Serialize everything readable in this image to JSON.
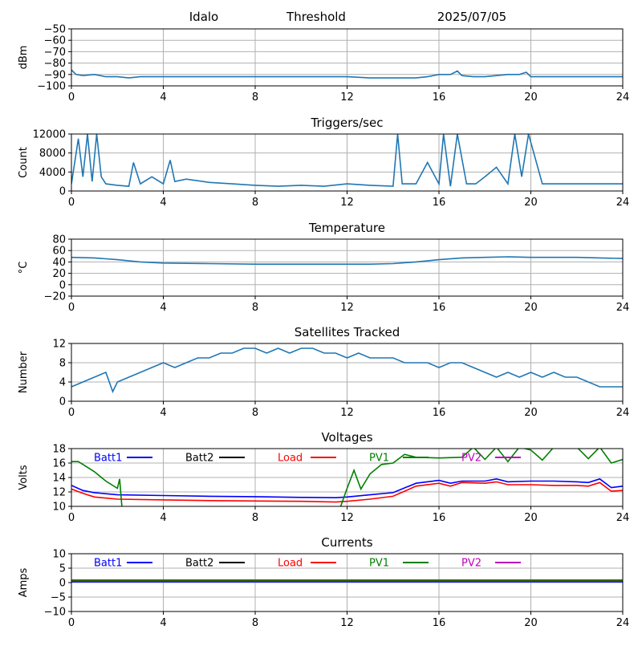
{
  "header": {
    "station": "Idalo",
    "mode": "Threshold",
    "date": "2025/07/05"
  },
  "colors": {
    "line": "#1f77b4",
    "grid": "#b0b0b0",
    "Batt1": "#0000ff",
    "Batt2": "#000000",
    "Load": "#ff0000",
    "PV1": "#008000",
    "PV2": "#bf00bf"
  },
  "chart_data": [
    {
      "type": "line",
      "title": "",
      "ylabel": "dBm",
      "xlim": [
        0,
        24
      ],
      "xticks": [
        0,
        4,
        8,
        12,
        16,
        20,
        24
      ],
      "ylim": [
        -100,
        -50
      ],
      "yticks": [
        -100,
        -90,
        -80,
        -70,
        -60,
        -50
      ],
      "grid": true,
      "series": [
        {
          "x": [
            0,
            0.2,
            0.5,
            1,
            1.5,
            2,
            2.5,
            3,
            4,
            6,
            8,
            10,
            12,
            13,
            14,
            15,
            15.5,
            16,
            16.5,
            16.8,
            17,
            17.5,
            18,
            19,
            19.5,
            19.8,
            20,
            21,
            22,
            23,
            24
          ],
          "y": [
            -86,
            -90,
            -91,
            -90,
            -92,
            -92,
            -93,
            -92,
            -92,
            -92,
            -92,
            -92,
            -92,
            -93,
            -93,
            -93,
            -92,
            -90,
            -90,
            -87,
            -91,
            -92,
            -92,
            -90,
            -90,
            -88,
            -92,
            -92,
            -92,
            -92,
            -92
          ]
        }
      ]
    },
    {
      "type": "line",
      "title": "Triggers/sec",
      "ylabel": "Count",
      "xlim": [
        0,
        24
      ],
      "xticks": [
        0,
        4,
        8,
        12,
        16,
        20,
        24
      ],
      "ylim": [
        0,
        12000
      ],
      "yticks": [
        0,
        4000,
        8000,
        12000
      ],
      "grid": true,
      "series": [
        {
          "x": [
            0,
            0.3,
            0.5,
            0.7,
            0.9,
            1.1,
            1.3,
            1.5,
            2,
            2.5,
            2.7,
            3,
            3.5,
            4,
            4.3,
            4.5,
            5,
            6,
            7,
            8,
            9,
            10,
            11,
            12,
            13,
            14,
            14.2,
            14.4,
            15,
            15.5,
            16,
            16.2,
            16.5,
            16.8,
            17.2,
            17.6,
            18,
            18.5,
            19,
            19.3,
            19.6,
            19.9,
            20.5,
            21,
            22,
            23,
            24
          ],
          "y": [
            1500,
            11000,
            3000,
            12000,
            2000,
            12000,
            3000,
            1500,
            1200,
            1000,
            6000,
            1500,
            3000,
            1500,
            6500,
            2000,
            2500,
            1800,
            1500,
            1200,
            1000,
            1200,
            1000,
            1500,
            1200,
            1000,
            12000,
            1500,
            1500,
            6000,
            1500,
            12000,
            1000,
            12000,
            1500,
            1500,
            3000,
            5000,
            1500,
            12000,
            3000,
            12000,
            1500,
            1500,
            1500,
            1500,
            1500
          ]
        }
      ]
    },
    {
      "type": "line",
      "title": "Temperature",
      "ylabel": "°C",
      "xlim": [
        0,
        24
      ],
      "xticks": [
        0,
        4,
        8,
        12,
        16,
        20,
        24
      ],
      "ylim": [
        -20,
        80
      ],
      "yticks": [
        -20,
        0,
        20,
        40,
        60,
        80
      ],
      "grid": true,
      "series": [
        {
          "x": [
            0,
            1,
            2,
            3,
            4,
            6,
            8,
            10,
            12,
            13,
            14,
            15,
            16,
            17,
            18,
            19,
            20,
            21,
            22,
            23,
            24
          ],
          "y": [
            48,
            47,
            44,
            40,
            38,
            37,
            36,
            36,
            36,
            36,
            37,
            40,
            44,
            47,
            48,
            49,
            48,
            48,
            48,
            47,
            46
          ]
        }
      ]
    },
    {
      "type": "line",
      "title": "Satellites Tracked",
      "ylabel": "Number",
      "xlim": [
        0,
        24
      ],
      "xticks": [
        0,
        4,
        8,
        12,
        16,
        20,
        24
      ],
      "ylim": [
        0,
        12
      ],
      "yticks": [
        0,
        4,
        8,
        12
      ],
      "grid": true,
      "series": [
        {
          "x": [
            0,
            0.5,
            1,
            1.5,
            1.8,
            2,
            2.5,
            3,
            3.5,
            4,
            4.5,
            5,
            5.5,
            6,
            6.5,
            7,
            7.5,
            8,
            8.5,
            9,
            9.5,
            10,
            10.5,
            11,
            11.5,
            12,
            12.5,
            13,
            13.5,
            14,
            14.5,
            15,
            15.5,
            16,
            16.5,
            17,
            17.5,
            18,
            18.5,
            19,
            19.5,
            20,
            20.5,
            21,
            21.5,
            22,
            22.5,
            23,
            23.5,
            24
          ],
          "y": [
            3,
            4,
            5,
            6,
            2,
            4,
            5,
            6,
            7,
            8,
            7,
            8,
            9,
            9,
            10,
            10,
            11,
            11,
            10,
            11,
            10,
            11,
            11,
            10,
            10,
            9,
            10,
            9,
            9,
            9,
            8,
            8,
            8,
            7,
            8,
            8,
            7,
            6,
            5,
            6,
            5,
            6,
            5,
            6,
            5,
            5,
            4,
            3,
            3,
            3
          ]
        }
      ]
    },
    {
      "type": "line",
      "title": "Voltages",
      "ylabel": "Volts",
      "xlim": [
        0,
        24
      ],
      "xticks": [
        0,
        4,
        8,
        12,
        16,
        20,
        24
      ],
      "ylim": [
        10,
        18
      ],
      "yticks": [
        10,
        12,
        14,
        16,
        18
      ],
      "grid": true,
      "legend": "top, single row",
      "series": [
        {
          "name": "Batt1",
          "color": "#0000ff",
          "x": [
            0,
            0.5,
            1,
            2,
            4,
            6,
            8,
            10,
            11.5,
            12,
            13,
            14,
            15,
            16,
            16.5,
            17,
            18,
            18.5,
            19,
            20,
            21,
            22,
            22.5,
            23,
            23.5,
            24
          ],
          "y": [
            12.9,
            12.2,
            11.9,
            11.6,
            11.5,
            11.4,
            11.35,
            11.25,
            11.2,
            11.3,
            11.6,
            11.9,
            13.2,
            13.6,
            13.2,
            13.5,
            13.5,
            13.8,
            13.4,
            13.5,
            13.5,
            13.4,
            13.3,
            13.8,
            12.6,
            12.8
          ]
        },
        {
          "name": "Batt2",
          "color": "#000000",
          "x": [],
          "y": []
        },
        {
          "name": "Load",
          "color": "#ff0000",
          "x": [
            0,
            0.5,
            1,
            2,
            4,
            6,
            8,
            10,
            11.5,
            12,
            13,
            14,
            15,
            16,
            16.5,
            17,
            18,
            18.5,
            19,
            20,
            21,
            22,
            22.5,
            23,
            23.5,
            24
          ],
          "y": [
            12.4,
            11.8,
            11.3,
            11.0,
            10.9,
            10.8,
            10.75,
            10.7,
            10.6,
            10.7,
            11.0,
            11.4,
            12.8,
            13.2,
            12.8,
            13.3,
            13.2,
            13.4,
            13.0,
            13.0,
            12.9,
            12.9,
            12.8,
            13.3,
            12.1,
            12.2
          ]
        },
        {
          "name": "PV1",
          "color": "#008000",
          "x": [
            0,
            0.3,
            0.6,
            1,
            1.5,
            2,
            2.1,
            2.2,
            11.7,
            12,
            12.3,
            12.6,
            13,
            13.5,
            14,
            14.5,
            15,
            16,
            17,
            17.5,
            18,
            18.5,
            19,
            19.5,
            20,
            20.5,
            21,
            22,
            22.5,
            23,
            23.5,
            24
          ],
          "y": [
            16.2,
            16.2,
            15.6,
            14.8,
            13.5,
            12.5,
            13.8,
            9.8,
            9.8,
            12.5,
            15.0,
            12.4,
            14.5,
            15.8,
            16.0,
            17.2,
            16.8,
            16.7,
            16.8,
            18.2,
            16.5,
            18.2,
            16.2,
            18.2,
            17.8,
            16.4,
            18.2,
            18.2,
            16.6,
            18.2,
            16.0,
            16.5
          ]
        },
        {
          "name": "PV2",
          "color": "#bf00bf",
          "x": [],
          "y": []
        }
      ]
    },
    {
      "type": "line",
      "title": "Currents",
      "ylabel": "Amps",
      "xlim": [
        0,
        24
      ],
      "xticks": [
        0,
        4,
        8,
        12,
        16,
        20,
        24
      ],
      "ylim": [
        -10,
        10
      ],
      "yticks": [
        -10,
        -5,
        0,
        5,
        10
      ],
      "grid": true,
      "legend": "top, single row",
      "series": [
        {
          "name": "Batt1",
          "color": "#0000ff",
          "x": [
            0,
            4,
            8,
            12,
            16,
            20,
            24
          ],
          "y": [
            0.3,
            0.3,
            0.3,
            0.3,
            0.3,
            0.3,
            0.3
          ]
        },
        {
          "name": "Batt2",
          "color": "#000000",
          "x": [],
          "y": []
        },
        {
          "name": "Load",
          "color": "#ff0000",
          "x": [
            0,
            4,
            8,
            12,
            16,
            20,
            24
          ],
          "y": [
            0.9,
            0.9,
            0.9,
            0.9,
            0.9,
            0.9,
            0.9
          ]
        },
        {
          "name": "PV1",
          "color": "#008000",
          "x": [
            0,
            4,
            8,
            12,
            16,
            20,
            24
          ],
          "y": [
            0.6,
            0.6,
            0.6,
            0.6,
            0.6,
            0.6,
            0.6
          ]
        },
        {
          "name": "PV2",
          "color": "#bf00bf",
          "x": [],
          "y": []
        }
      ]
    }
  ]
}
